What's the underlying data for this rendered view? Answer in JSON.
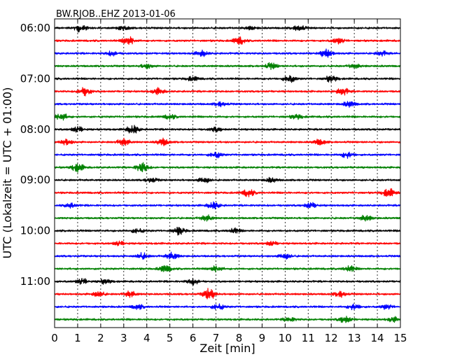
{
  "chart_data": {
    "type": "line",
    "title": "BW.RJOB..EHZ 2013-01-06",
    "xlabel": "Zeit  [min]",
    "ylabel": "UTC (Lokalzeit = UTC + 01:00)",
    "xlim": [
      0,
      15
    ],
    "x_ticks": [
      "0",
      "1",
      "2",
      "3",
      "4",
      "5",
      "6",
      "7",
      "8",
      "9",
      "10",
      "11",
      "12",
      "13",
      "14",
      "15"
    ],
    "y_ticks": [
      "06:00",
      "07:00",
      "08:00",
      "09:00",
      "10:00",
      "11:00"
    ],
    "grid": "vertical dotted",
    "trace_start_times": [
      "06:00",
      "06:15",
      "06:30",
      "06:45",
      "07:00",
      "07:15",
      "07:30",
      "07:45",
      "08:00",
      "08:15",
      "08:30",
      "08:45",
      "09:00",
      "09:15",
      "09:30",
      "09:45",
      "10:00",
      "10:15",
      "10:30",
      "10:45",
      "11:00",
      "11:15",
      "11:30",
      "11:45"
    ],
    "trace_color_cycle": [
      "#000000",
      "#ff0000",
      "#0000ff",
      "#008000"
    ],
    "bursts": [
      [
        [
          1.1,
          5
        ],
        [
          3.0,
          3
        ],
        [
          8.5,
          2
        ],
        [
          10.6,
          4
        ]
      ],
      [
        [
          3.2,
          6
        ],
        [
          8.0,
          5
        ],
        [
          12.3,
          4
        ]
      ],
      [
        [
          2.5,
          3
        ],
        [
          6.4,
          4
        ],
        [
          11.8,
          6
        ],
        [
          14.2,
          3
        ]
      ],
      [
        [
          4.0,
          3
        ],
        [
          9.4,
          4
        ],
        [
          13.0,
          3
        ]
      ],
      [
        [
          6.0,
          3
        ],
        [
          10.2,
          5
        ],
        [
          12.0,
          4
        ]
      ],
      [
        [
          1.3,
          6
        ],
        [
          4.5,
          4
        ],
        [
          12.5,
          5
        ]
      ],
      [
        [
          7.2,
          3
        ],
        [
          12.8,
          4
        ]
      ],
      [
        [
          0.3,
          5
        ],
        [
          5.0,
          3
        ],
        [
          10.5,
          3
        ]
      ],
      [
        [
          1.0,
          4
        ],
        [
          3.4,
          6
        ],
        [
          7.0,
          3
        ]
      ],
      [
        [
          0.5,
          4
        ],
        [
          3.0,
          5
        ],
        [
          4.7,
          5
        ],
        [
          11.5,
          4
        ]
      ],
      [
        [
          7.0,
          4
        ],
        [
          12.7,
          4
        ]
      ],
      [
        [
          1.0,
          6
        ],
        [
          3.8,
          7
        ]
      ],
      [
        [
          4.2,
          3
        ],
        [
          6.5,
          4
        ],
        [
          9.4,
          3
        ]
      ],
      [
        [
          8.4,
          5
        ],
        [
          14.5,
          6
        ]
      ],
      [
        [
          0.7,
          3
        ],
        [
          6.9,
          5
        ],
        [
          11.1,
          4
        ]
      ],
      [
        [
          6.6,
          4
        ],
        [
          13.5,
          4
        ]
      ],
      [
        [
          3.6,
          3
        ],
        [
          5.4,
          5
        ],
        [
          7.8,
          3
        ]
      ],
      [
        [
          2.8,
          3
        ],
        [
          9.4,
          3
        ]
      ],
      [
        [
          3.8,
          4
        ],
        [
          5.1,
          5
        ],
        [
          10.0,
          4
        ]
      ],
      [
        [
          4.8,
          5
        ],
        [
          7.0,
          4
        ],
        [
          12.8,
          4
        ]
      ],
      [
        [
          1.2,
          4
        ],
        [
          2.2,
          3
        ],
        [
          6.0,
          4
        ]
      ],
      [
        [
          1.9,
          4
        ],
        [
          3.3,
          4
        ],
        [
          6.7,
          8
        ],
        [
          12.4,
          4
        ]
      ],
      [
        [
          3.6,
          3
        ],
        [
          7.1,
          4
        ],
        [
          13.0,
          4
        ],
        [
          14.4,
          3
        ]
      ],
      [
        [
          10.2,
          3
        ],
        [
          12.6,
          5
        ],
        [
          14.7,
          3
        ]
      ]
    ]
  }
}
